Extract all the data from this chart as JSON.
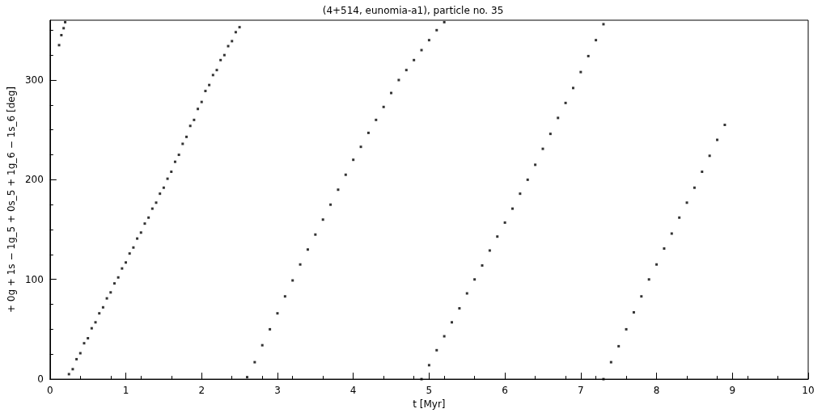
{
  "chart_data": {
    "type": "scatter",
    "title": "(4+514, eunomia-a1), particle no. 35",
    "xlabel": "t [Myr]",
    "ylabel": "+ 0g + 1s − 1g_5 + 0s_5 + 1g_6 − 1s_6 [deg]",
    "xlim": [
      0,
      10
    ],
    "xticks": [
      0,
      1,
      2,
      3,
      4,
      5,
      6,
      7,
      8,
      9,
      10
    ],
    "ylim": [
      0,
      360
    ],
    "yticks": [
      0,
      100,
      200,
      300
    ],
    "marker": "square",
    "series": [
      {
        "color": "#000000",
        "x": [
          0.12,
          0.15,
          0.18,
          0.2,
          0.25,
          0.3,
          0.35,
          0.4,
          0.45,
          0.5,
          0.55,
          0.6,
          0.65,
          0.7,
          0.75,
          0.8,
          0.85,
          0.9,
          0.95,
          1.0,
          1.05,
          1.1,
          1.15,
          1.2,
          1.25,
          1.3,
          1.35,
          1.4,
          1.45,
          1.5,
          1.55,
          1.6,
          1.65,
          1.7,
          1.75,
          1.8,
          1.85,
          1.9,
          1.95,
          2.0,
          2.05,
          2.1,
          2.15,
          2.2,
          2.25,
          2.3,
          2.35,
          2.4,
          2.45,
          2.5,
          2.6,
          2.7,
          2.8,
          2.9,
          3.0,
          3.1,
          3.2,
          3.3,
          3.4,
          3.5,
          3.6,
          3.7,
          3.8,
          3.9,
          4.0,
          4.1,
          4.2,
          4.3,
          4.4,
          4.5,
          4.6,
          4.7,
          4.8,
          4.9,
          5.0,
          5.1,
          5.2,
          4.9,
          5.0,
          5.1,
          5.2,
          5.3,
          5.4,
          5.5,
          5.6,
          5.7,
          5.8,
          5.9,
          6.0,
          6.1,
          6.2,
          6.3,
          6.4,
          6.5,
          6.6,
          6.7,
          6.8,
          6.9,
          7.0,
          7.1,
          7.2,
          7.3,
          7.3,
          7.4,
          7.5,
          7.6,
          7.7,
          7.8,
          7.9,
          8.0,
          8.1,
          8.2,
          8.3,
          8.4,
          8.5,
          8.6,
          8.7,
          8.8,
          8.9
        ],
        "values": [
          335,
          345,
          352,
          358,
          5,
          10,
          20,
          26,
          36,
          41,
          51,
          57,
          66,
          72,
          81,
          87,
          96,
          102,
          111,
          117,
          126,
          132,
          141,
          147,
          156,
          162,
          171,
          177,
          186,
          192,
          201,
          208,
          218,
          225,
          236,
          243,
          254,
          260,
          271,
          278,
          289,
          295,
          305,
          310,
          320,
          325,
          334,
          339,
          348,
          353,
          2,
          17,
          34,
          50,
          66,
          83,
          99,
          115,
          130,
          145,
          160,
          175,
          190,
          205,
          220,
          233,
          247,
          260,
          273,
          287,
          300,
          310,
          320,
          330,
          340,
          350,
          358,
          0,
          14,
          29,
          43,
          57,
          71,
          86,
          100,
          114,
          129,
          143,
          157,
          171,
          186,
          200,
          215,
          231,
          246,
          262,
          277,
          292,
          308,
          324,
          340,
          356,
          0,
          17,
          33,
          50,
          67,
          83,
          100,
          115,
          131,
          146,
          162,
          177,
          192,
          208,
          224,
          240,
          255
        ]
      }
    ]
  }
}
